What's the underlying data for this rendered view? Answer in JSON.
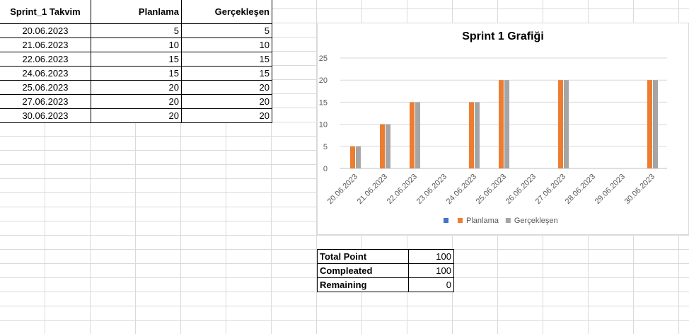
{
  "data_table": {
    "headers": [
      "Sprint_1 Takvim",
      "Planlama",
      "Gerçekleşen"
    ],
    "rows": [
      [
        "20.06.2023",
        "5",
        "5"
      ],
      [
        "21.06.2023",
        "10",
        "10"
      ],
      [
        "22.06.2023",
        "15",
        "15"
      ],
      [
        "24.06.2023",
        "15",
        "15"
      ],
      [
        "25.06.2023",
        "20",
        "20"
      ],
      [
        "27.06.2023",
        "20",
        "20"
      ],
      [
        "30.06.2023",
        "20",
        "20"
      ]
    ]
  },
  "summary": {
    "rows": [
      [
        "Total Point",
        "100"
      ],
      [
        "Compleated",
        "100"
      ],
      [
        "Remaining",
        "0"
      ]
    ]
  },
  "chart_data": {
    "type": "bar",
    "title": "Sprint 1 Grafiği",
    "categories": [
      "20.06.2023",
      "21.06.2023",
      "22.06.2023",
      "23.06.2023",
      "24.06.2023",
      "25.06.2023",
      "26.06.2023",
      "27.06.2023",
      "28.06.2023",
      "29.06.2023",
      "30.06.2023"
    ],
    "series": [
      {
        "name": "",
        "color": "#4472c4",
        "values": [
          null,
          null,
          null,
          null,
          null,
          null,
          null,
          null,
          null,
          null,
          null
        ]
      },
      {
        "name": "Planlama",
        "color": "#ed7d31",
        "values": [
          5,
          10,
          15,
          null,
          15,
          20,
          null,
          20,
          null,
          null,
          20
        ]
      },
      {
        "name": "Gerçekleşen",
        "color": "#a5a5a5",
        "values": [
          5,
          10,
          15,
          null,
          15,
          20,
          null,
          20,
          null,
          null,
          20
        ]
      }
    ],
    "ylim": [
      0,
      25
    ],
    "yticks": [
      0,
      5,
      10,
      15,
      20,
      25
    ],
    "grid": true,
    "legend": "bottom",
    "xlabel": "",
    "ylabel": ""
  }
}
